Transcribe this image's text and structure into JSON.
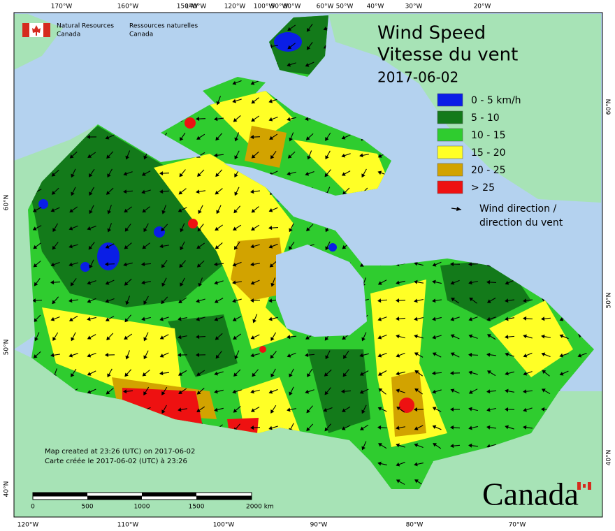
{
  "header": {
    "agency_en": [
      "Natural Resources",
      "Canada"
    ],
    "agency_fr": [
      "Ressources naturelles",
      "Canada"
    ]
  },
  "title": {
    "line1": "Wind Speed",
    "line2": "Vitesse du vent",
    "date": "2017-06-02"
  },
  "legend": {
    "items": [
      {
        "label": "0 - 5 km/h",
        "color": "#0a1ee6"
      },
      {
        "label": "5 - 10",
        "color": "#137a1a"
      },
      {
        "label": "10 - 15",
        "color": "#2fcc2f"
      },
      {
        "label": "15 - 20",
        "color": "#ffff26"
      },
      {
        "label": "20 - 25",
        "color": "#d2a300"
      },
      {
        "label": "> 25",
        "color": "#ee1111"
      }
    ],
    "arrow_label": [
      "Wind direction /",
      "direction du vent"
    ]
  },
  "footer": {
    "created_en": "Map created at 23:26 (UTC) on 2017-06-02",
    "created_fr": "Carte créée le 2017-06-02 (UTC) à 23:26"
  },
  "scale_bar": {
    "labels": [
      "0",
      "500",
      "1000",
      "1500",
      "2000  km"
    ]
  },
  "graticule": {
    "top": [
      "170°W",
      "160°W",
      "150°W",
      "140°W",
      "120°W",
      "100°W",
      "90°W",
      "80°W",
      "60°W",
      "50°W",
      "40°W",
      "30°W",
      "20°W"
    ],
    "bottom": [
      "120°W",
      "110°W",
      "100°W",
      "90°W",
      "80°W",
      "70°W"
    ],
    "left": [
      "60°N",
      "50°N",
      "40°N"
    ],
    "right": [
      "60°N",
      "50°N",
      "40°N"
    ]
  },
  "wordmark": "Canada"
}
